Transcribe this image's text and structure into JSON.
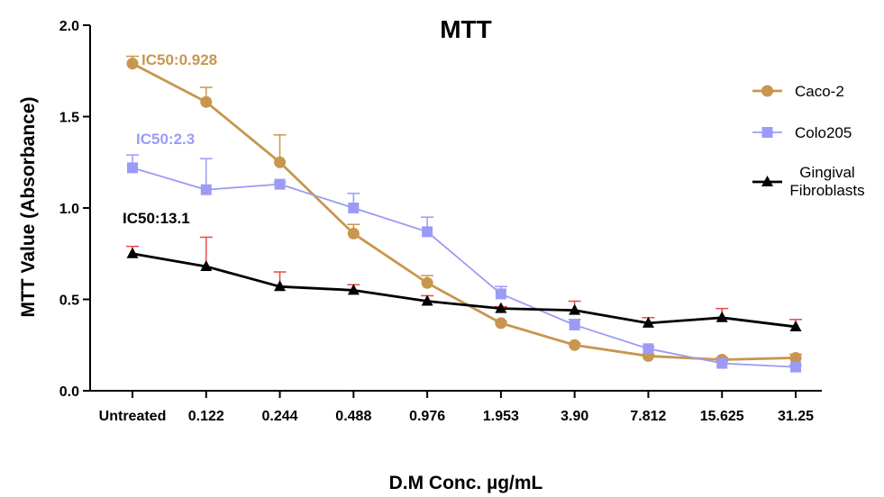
{
  "chart_data": {
    "type": "line",
    "title": "MTT",
    "xlabel": "D.M Conc. µg/mL",
    "ylabel": "MTT Value (Absorbance)",
    "categories": [
      "Untreated",
      "0.122",
      "0.244",
      "0.488",
      "0.976",
      "1.953",
      "3.90",
      "7.812",
      "15.625",
      "31.25"
    ],
    "ylim": [
      0,
      2.0
    ],
    "yticks": [
      "0.0",
      "0.5",
      "1.0",
      "1.5",
      "2.0"
    ],
    "grid": false,
    "legend_position": "right",
    "series": [
      {
        "name": "Caco-2",
        "color": "#C8964E",
        "errorbar_color": "#C8964E",
        "marker": "circle",
        "values": [
          1.79,
          1.58,
          1.25,
          0.86,
          0.59,
          0.37,
          0.25,
          0.19,
          0.17,
          0.18
        ],
        "errors": [
          0.04,
          0.08,
          0.15,
          0.05,
          0.04,
          0.01,
          0.01,
          0.01,
          0.01,
          0.02
        ]
      },
      {
        "name": "Colo205",
        "color": "#9B9BF5",
        "errorbar_color": "#9B9BF5",
        "marker": "square",
        "values": [
          1.22,
          1.1,
          1.13,
          1.0,
          0.87,
          0.53,
          0.36,
          0.23,
          0.15,
          0.13
        ],
        "errors": [
          0.07,
          0.17,
          0.01,
          0.08,
          0.08,
          0.04,
          0.03,
          0.01,
          0.01,
          0.01
        ]
      },
      {
        "name": "Gingival Fibroblasts",
        "legend_lines": [
          "Gingival",
          "Fibroblasts"
        ],
        "color": "#000000",
        "errorbar_color": "#E84A4A",
        "marker": "triangle",
        "values": [
          0.75,
          0.68,
          0.57,
          0.55,
          0.49,
          0.45,
          0.44,
          0.37,
          0.4,
          0.35
        ],
        "errors": [
          0.04,
          0.16,
          0.08,
          0.03,
          0.03,
          0.01,
          0.05,
          0.03,
          0.05,
          0.04
        ]
      }
    ],
    "annotations": [
      {
        "text": "IC50:0.928",
        "series": "Caco-2",
        "color": "#C8964E"
      },
      {
        "text": "IC50:2.3",
        "series": "Colo205",
        "color": "#9B9BF5"
      },
      {
        "text": "IC50:13.1",
        "series": "Gingival Fibroblasts",
        "color": "#000000"
      }
    ]
  }
}
